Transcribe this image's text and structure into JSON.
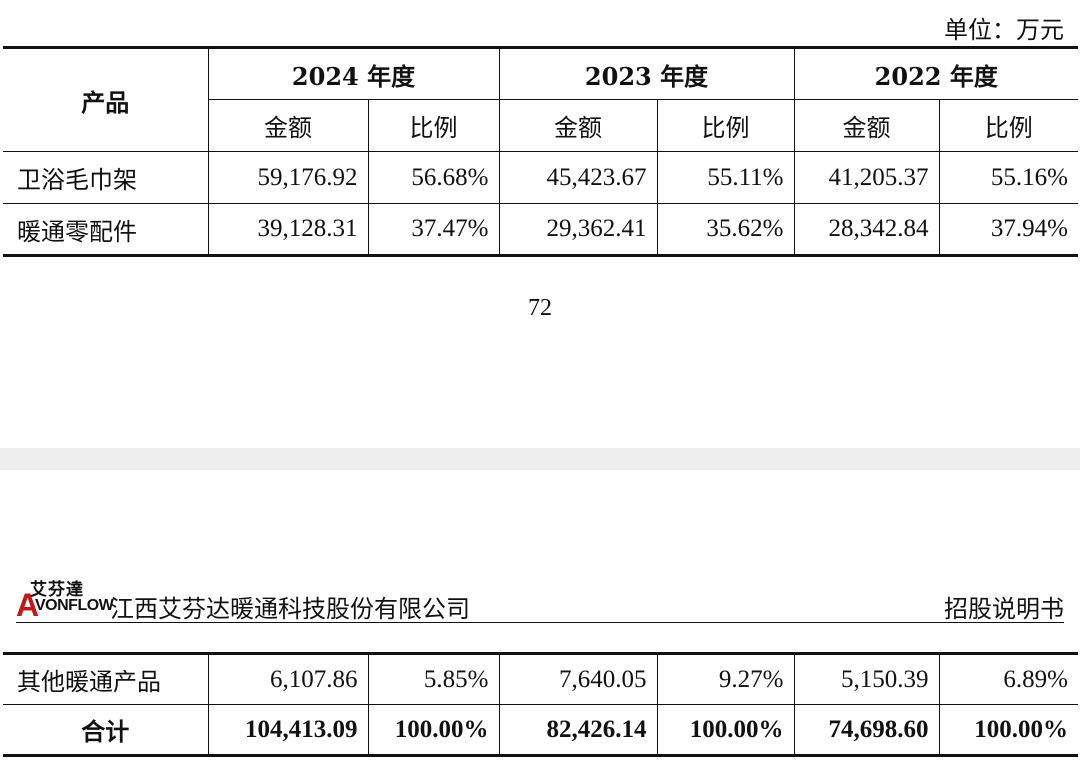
{
  "unit": "单位：万元",
  "table": {
    "col_product": "产品",
    "years": [
      "2024 年度",
      "2023 年度",
      "2022 年度"
    ],
    "sub_amount": "金额",
    "sub_ratio": "比例",
    "rows_top": [
      {
        "name": "卫浴毛巾架",
        "values": [
          "59,176.92",
          "56.68%",
          "45,423.67",
          "55.11%",
          "41,205.37",
          "55.16%"
        ]
      },
      {
        "name": "暖通零配件",
        "values": [
          "39,128.31",
          "37.47%",
          "29,362.41",
          "35.62%",
          "28,342.84",
          "37.94%"
        ]
      }
    ],
    "rows_bottom": [
      {
        "name": "其他暖通产品",
        "values": [
          "6,107.86",
          "5.85%",
          "7,640.05",
          "9.27%",
          "5,150.39",
          "6.89%"
        ]
      },
      {
        "name": "合计",
        "values": [
          "104,413.09",
          "100.00%",
          "82,426.14",
          "100.00%",
          "74,698.60",
          "100.00%"
        ]
      }
    ]
  },
  "page_number": "72",
  "header": {
    "logo_cn": "艾芬達",
    "logo_a": "A",
    "logo_en": "VONFLOW",
    "company": "江西艾芬达暖通科技股份有限公司",
    "doc_type": "招股说明书"
  }
}
